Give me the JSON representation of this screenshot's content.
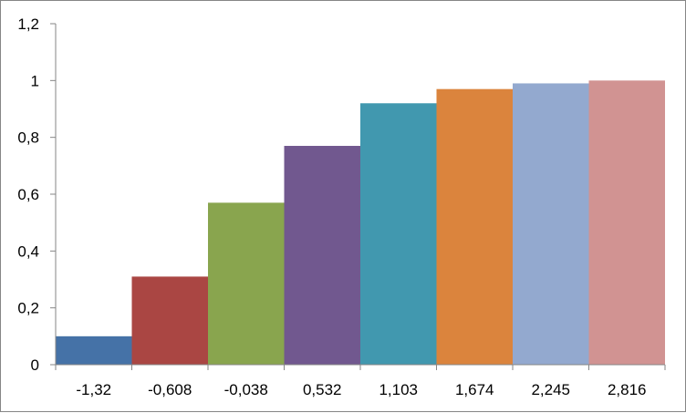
{
  "chart_data": {
    "type": "bar",
    "categories": [
      "-1,32",
      "-0,608",
      "-0,038",
      "0,532",
      "1,103",
      "1,674",
      "2,245",
      "2,816"
    ],
    "values": [
      0.1,
      0.31,
      0.57,
      0.77,
      0.92,
      0.97,
      0.99,
      1.0
    ],
    "colors": [
      "#4572A7",
      "#AA4643",
      "#89A54E",
      "#71588F",
      "#4198AF",
      "#DB843D",
      "#93A9CF",
      "#D19392"
    ],
    "ylim": [
      0,
      1.2
    ],
    "yticks": [
      "0",
      "0,2",
      "0,4",
      "0,6",
      "0,8",
      "1",
      "1,2"
    ],
    "ytick_values": [
      0,
      0.2,
      0.4,
      0.6,
      0.8,
      1.0,
      1.2
    ],
    "grid": false,
    "legend": "none"
  }
}
